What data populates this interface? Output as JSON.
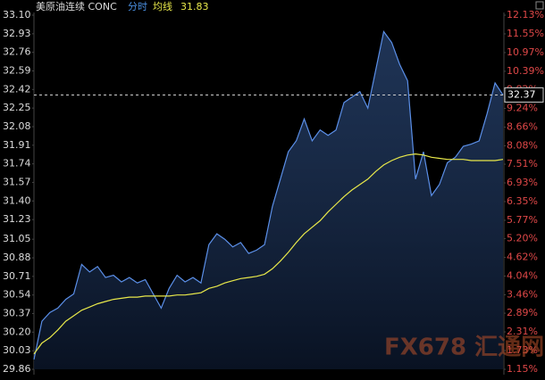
{
  "chart_data": {
    "type": "line",
    "title": "美原油连续 CONC",
    "mode_label": "分时",
    "avg_label": "均线",
    "avg_value": 31.83,
    "watermark": "FX678 汇通网",
    "grid": false,
    "ylim": [
      29.86,
      33.1
    ],
    "yticks": [
      {
        "value": 33.1,
        "label": "33.10"
      },
      32.93,
      32.76,
      32.59,
      32.42,
      32.25,
      32.08,
      31.91,
      31.74,
      31.57,
      {
        "value": 31.4,
        "label": "31.40"
      },
      31.23,
      31.05,
      30.88,
      30.71,
      30.54,
      30.37,
      {
        "value": 30.2,
        "label": "30.20"
      },
      30.03,
      29.86
    ],
    "y2lim": [
      1.15,
      12.13
    ],
    "y2ticks": [
      {
        "value": 12.13,
        "label": "12.13%"
      },
      {
        "value": 11.55,
        "label": "11.55%"
      },
      {
        "value": 10.97,
        "label": "10.97%"
      },
      {
        "value": 10.39,
        "label": "10.39%"
      },
      {
        "value": 9.82,
        "label": "9.82%"
      },
      {
        "value": 9.24,
        "label": "9.24%"
      },
      {
        "value": 8.66,
        "label": "8.66%"
      },
      {
        "value": 8.08,
        "label": "8.08%"
      },
      {
        "value": 7.51,
        "label": "7.51%"
      },
      {
        "value": 6.93,
        "label": "6.93%"
      },
      {
        "value": 6.35,
        "label": "6.35%"
      },
      {
        "value": 5.77,
        "label": "5.77%"
      },
      {
        "value": 5.2,
        "label": "5.20%"
      },
      {
        "value": 4.62,
        "label": "4.62%"
      },
      {
        "value": 4.04,
        "label": "4.04%"
      },
      {
        "value": 3.46,
        "label": "3.46%"
      },
      {
        "value": 2.89,
        "label": "2.89%"
      },
      {
        "value": 2.31,
        "label": "2.31%"
      },
      {
        "value": 1.73,
        "label": "1.73%"
      },
      {
        "value": 1.15,
        "label": "1.15%"
      }
    ],
    "series": [
      {
        "color": "#5b8fe8",
        "values": [
          29.95,
          30.3,
          30.38,
          30.42,
          30.5,
          30.55,
          30.82,
          30.75,
          30.8,
          30.7,
          30.72,
          30.66,
          30.7,
          30.65,
          30.68,
          30.55,
          30.42,
          30.6,
          30.72,
          30.66,
          30.7,
          30.65,
          31.0,
          31.1,
          31.05,
          30.98,
          31.02,
          30.92,
          30.95,
          31.0,
          31.35,
          31.6,
          31.85,
          31.95,
          32.15,
          31.95,
          32.05,
          32.0,
          32.05,
          32.3,
          32.35,
          32.4,
          32.25,
          32.6,
          32.95,
          32.85,
          32.65,
          32.5,
          31.6,
          31.85,
          31.45,
          31.55,
          31.75,
          31.8,
          31.9,
          31.92,
          31.95,
          32.2,
          32.48,
          32.37
        ]
      },
      {
        "color": "#e8e84a",
        "values": [
          30.0,
          30.1,
          30.15,
          30.22,
          30.3,
          30.35,
          30.4,
          30.43,
          30.46,
          30.48,
          30.5,
          30.51,
          30.52,
          30.52,
          30.53,
          30.53,
          30.53,
          30.53,
          30.54,
          30.54,
          30.55,
          30.56,
          30.6,
          30.62,
          30.65,
          30.67,
          30.69,
          30.7,
          30.71,
          30.73,
          30.78,
          30.85,
          30.93,
          31.02,
          31.1,
          31.16,
          31.22,
          31.3,
          31.37,
          31.44,
          31.5,
          31.55,
          31.6,
          31.67,
          31.73,
          31.77,
          31.8,
          31.82,
          31.83,
          31.82,
          31.8,
          31.79,
          31.78,
          31.78,
          31.78,
          31.77,
          31.77,
          31.77,
          31.77,
          31.78
        ]
      }
    ]
  }
}
